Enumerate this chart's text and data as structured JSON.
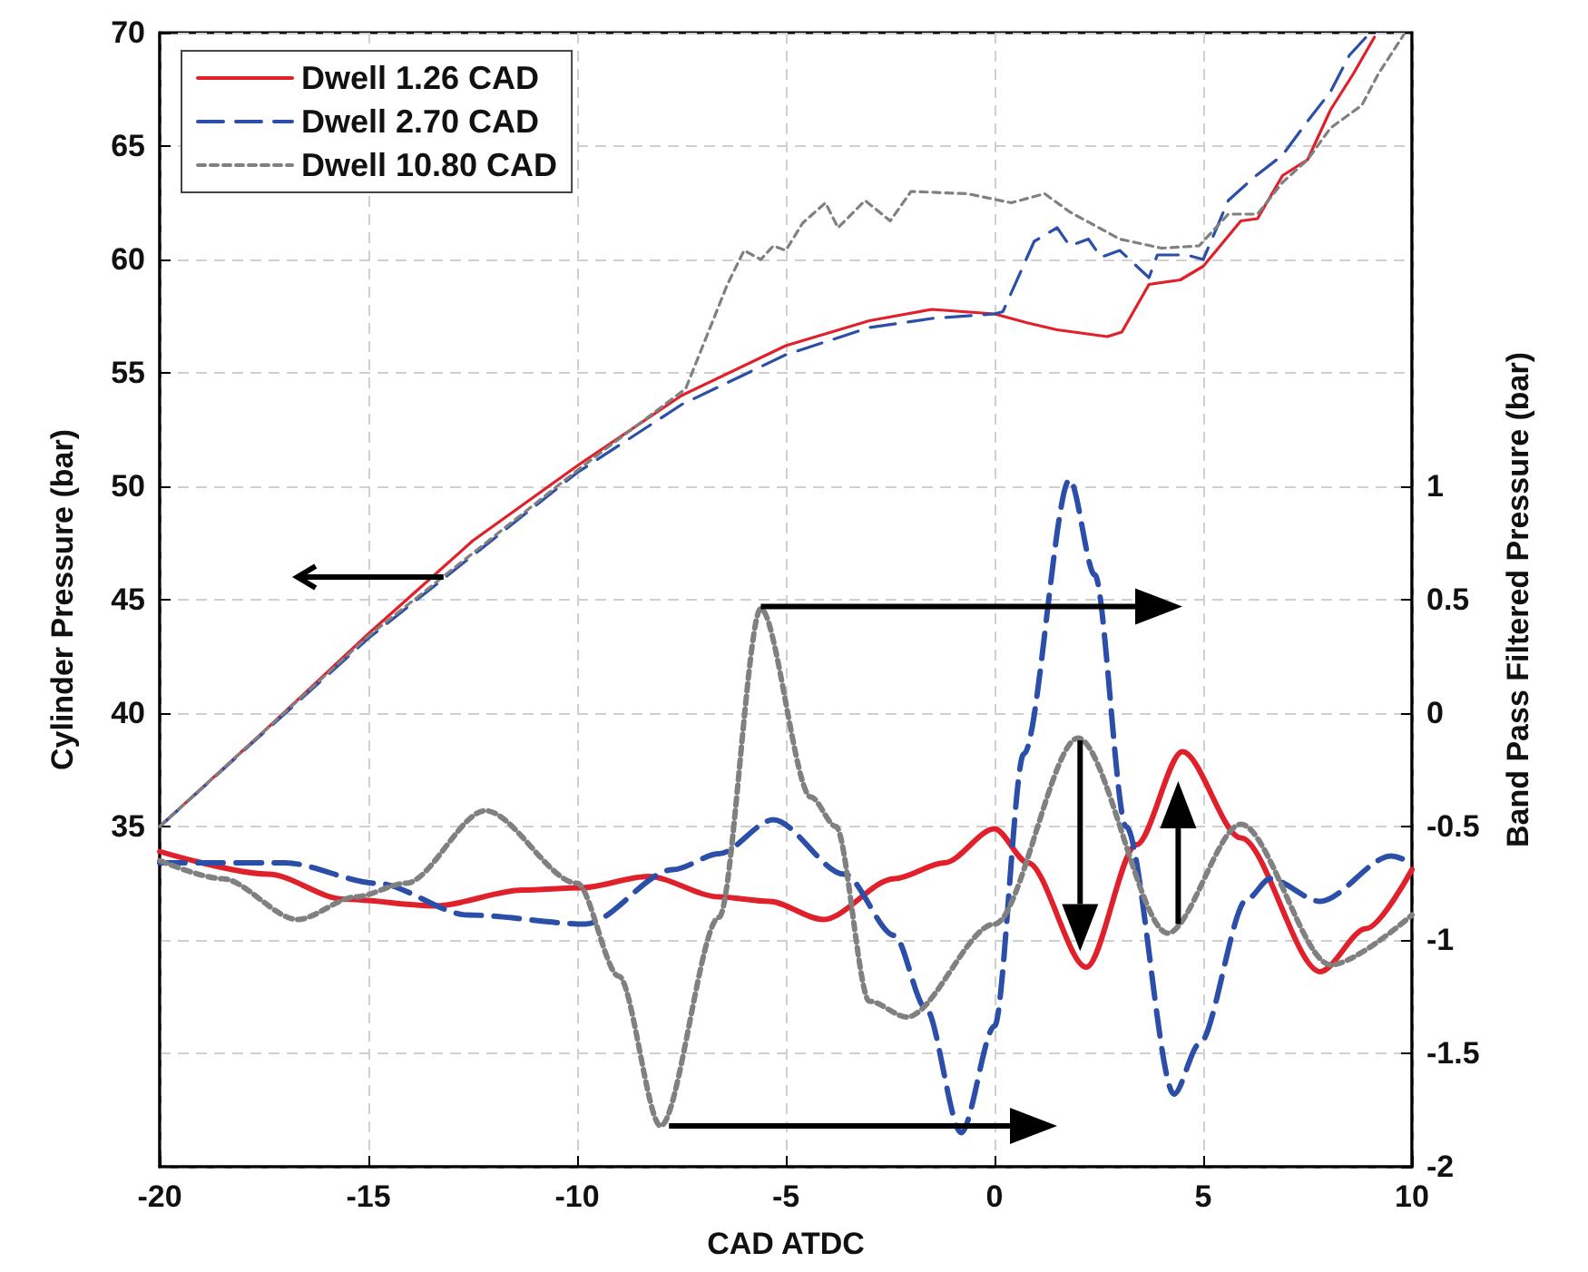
{
  "chart_data": {
    "type": "line",
    "xlabel": "CAD ATDC",
    "ylabel": "Cylinder Pressure (bar)",
    "y2label": "Band Pass Filtered Pressure (bar)",
    "xlim": [
      -20,
      10
    ],
    "xticks": [
      -20,
      -15,
      -10,
      -5,
      0,
      5,
      10
    ],
    "ylim": [
      20,
      70
    ],
    "yticks": [
      35,
      40,
      45,
      50,
      55,
      60,
      65,
      70
    ],
    "y2lim": [
      -2,
      3
    ],
    "y2ticks": [
      -2,
      -1.5,
      -1,
      -0.5,
      0,
      0.5,
      1
    ],
    "grid": true,
    "legend": "top left",
    "marker": "none",
    "series": [
      {
        "name": "Dwell 1.26 CAD",
        "color": "#e0202a",
        "line_style": "solid",
        "x": [
          -20,
          -17.5,
          -15,
          -12.5,
          -10,
          -7.5,
          -5,
          -3,
          -1.5,
          0,
          0.8,
          1.5,
          2.7,
          3.05,
          3.7,
          4.45,
          5,
          5.9,
          6.3,
          6.9,
          7.5,
          8.05,
          8.6,
          9.1
        ],
        "values": [
          35,
          39.2,
          43.5,
          47.6,
          50.9,
          54,
          56.2,
          57.3,
          57.8,
          57.6,
          57.2,
          56.9,
          56.6,
          56.8,
          58.9,
          59.1,
          59.7,
          61.7,
          61.8,
          63.7,
          64.4,
          66.6,
          68.2,
          69.8
        ]
      },
      {
        "name": "Dwell 2.70 CAD",
        "color": "#2b4fa8",
        "line_style": "dashed",
        "x": [
          -20,
          -15,
          -10,
          -7.5,
          -5,
          -3,
          -1.5,
          0,
          0.2,
          0.95,
          1.5,
          1.8,
          2.25,
          2.55,
          3,
          3.7,
          3.9,
          4.6,
          5,
          5.6,
          6.2,
          6.9,
          7.5,
          8.05,
          8.5,
          8.9
        ],
        "values": [
          35,
          43.3,
          50.6,
          53.6,
          55.8,
          57,
          57.4,
          57.6,
          57.7,
          60.8,
          61.4,
          60.6,
          60.9,
          60.1,
          60.4,
          59.2,
          60.2,
          60.2,
          60,
          62.6,
          63.6,
          64.6,
          66.1,
          67.4,
          69,
          69.8
        ]
      },
      {
        "name": "Dwell 10.80 CAD",
        "color": "#808080",
        "line_style": "dotted",
        "x": [
          -20,
          -15,
          -10,
          -7.4,
          -6.4,
          -6,
          -5.6,
          -5.3,
          -5,
          -4.6,
          -4.05,
          -3.75,
          -3.1,
          -2.5,
          -2,
          -0.65,
          0.4,
          1.2,
          1.8,
          3,
          4,
          4.9,
          5.6,
          6.3,
          6.9,
          7.5,
          8.05,
          8.8,
          9.2,
          9.8
        ],
        "values": [
          35,
          43.4,
          50.7,
          54.3,
          58.9,
          60.4,
          60,
          60.6,
          60.4,
          61.6,
          62.5,
          61.4,
          62.6,
          61.7,
          63,
          62.9,
          62.5,
          62.9,
          62.1,
          60.9,
          60.5,
          60.6,
          62,
          62,
          63.4,
          64.4,
          65.8,
          66.8,
          68.2,
          69.9
        ]
      },
      {
        "color": "#e0202a",
        "line_style": "solid",
        "axis": "y2",
        "x": [
          -20,
          -17.4,
          -15.6,
          -13.4,
          -11.3,
          -9.9,
          -8.3,
          -6.6,
          -5.4,
          -4.1,
          -2.4,
          -1.2,
          0,
          0.8,
          2.2,
          3.4,
          4.5,
          5.9,
          7.8,
          8.9,
          10
        ],
        "values": [
          -0.61,
          -0.71,
          -0.82,
          -0.85,
          -0.78,
          -0.77,
          -0.72,
          -0.81,
          -0.83,
          -0.91,
          -0.73,
          -0.66,
          -0.51,
          -0.66,
          -1.12,
          -0.58,
          -0.17,
          -0.55,
          -1.14,
          -0.95,
          -0.69
        ]
      },
      {
        "color": "#2b4fa8",
        "line_style": "dashed",
        "axis": "y2",
        "x": [
          -20,
          -17,
          -14.8,
          -12.6,
          -9.8,
          -7.7,
          -6.6,
          -5.3,
          -3.6,
          -2.4,
          -1.65,
          -0.8,
          0,
          0.7,
          1.8,
          2.4,
          3.15,
          4.3,
          4.9,
          6.05,
          6.6,
          7.8,
          9.5,
          10
        ],
        "values": [
          -0.66,
          -0.66,
          -0.75,
          -0.89,
          -0.93,
          -0.69,
          -0.62,
          -0.47,
          -0.71,
          -0.98,
          -1.3,
          -1.85,
          -1.38,
          -0.18,
          1.03,
          0.61,
          -0.5,
          -1.68,
          -1.46,
          -0.82,
          -0.73,
          -0.83,
          -0.63,
          -0.66
        ]
      },
      {
        "color": "#808080",
        "line_style": "dotted",
        "axis": "y2",
        "x": [
          -20,
          -18.5,
          -16.7,
          -15.3,
          -14.1,
          -12.2,
          -10,
          -9,
          -8,
          -6.6,
          -5.6,
          -4.4,
          -3.8,
          -3,
          -2.1,
          0,
          2,
          4.15,
          5.9,
          8.05,
          10
        ],
        "values": [
          -0.65,
          -0.73,
          -0.91,
          -0.81,
          -0.75,
          -0.43,
          -0.75,
          -1.16,
          -1.82,
          -0.9,
          0.46,
          -0.37,
          -0.5,
          -1.27,
          -1.34,
          -0.93,
          -0.11,
          -0.97,
          -0.49,
          -1.11,
          -0.89
        ]
      }
    ]
  }
}
